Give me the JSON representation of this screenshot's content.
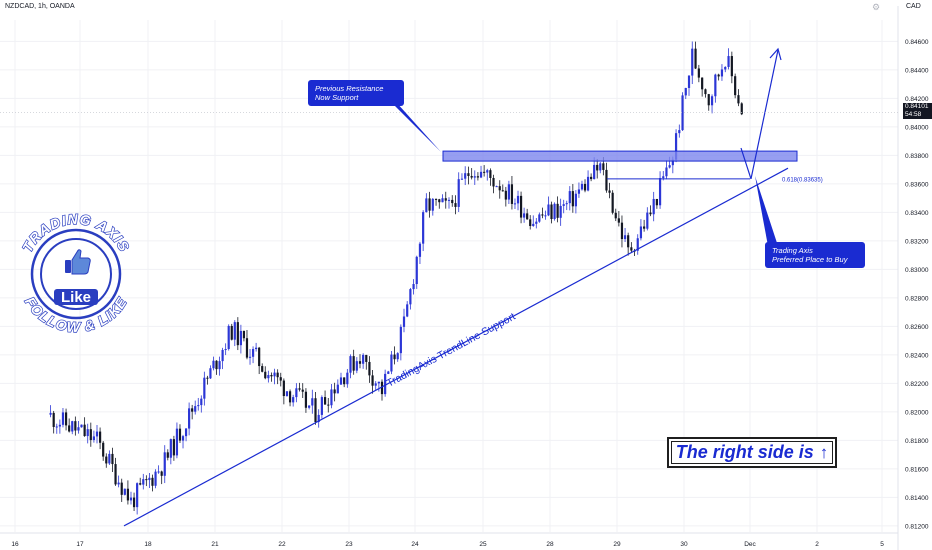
{
  "header": {
    "symbol_line": "NZDCAD, 1h, OANDA",
    "currency": "CAD",
    "gear_icon": "gear-icon"
  },
  "price_tag": {
    "price": "0.84101",
    "countdown": "54:58"
  },
  "annotations": {
    "resistance": [
      "Previous Resistance",
      "Now Support"
    ],
    "buy": [
      "Trading Axis",
      "Preferred Place to Buy"
    ],
    "trendline_label": "TradingAxis TrendLine Support",
    "fib_label": "0.618(0.83635)",
    "banner": "The right side is"
  },
  "logo": {
    "top_text": "TRADING AXIS",
    "bottom_text": "FOLLOW & LIKE",
    "badge": "Like"
  },
  "colors": {
    "bull": "#2b36d6",
    "bear": "#131722",
    "accent": "#1a2bd1",
    "zone_fill": "#7d86ee",
    "grid": "#f0f1f4"
  },
  "chart_data": {
    "type": "candlestick",
    "symbol": "NZDCAD",
    "timeframe": "1h",
    "broker": "OANDA",
    "ylim": [
      0.8115,
      0.8475
    ],
    "y_ticks": [
      "0.84600",
      "0.84400",
      "0.84200",
      "0.84000",
      "0.83800",
      "0.83600",
      "0.83400",
      "0.83200",
      "0.83000",
      "0.82800",
      "0.82600",
      "0.82400",
      "0.82200",
      "0.82000",
      "0.81800",
      "0.81600",
      "0.81400",
      "0.81200"
    ],
    "x_ticks": [
      "16",
      "17",
      "18",
      "21",
      "22",
      "23",
      "24",
      "25",
      "28",
      "29",
      "30",
      "Dec",
      "2",
      "5"
    ],
    "close_path": [
      [
        "16",
        0.8198
      ],
      [
        "17",
        0.818
      ],
      [
        "17",
        0.8137
      ],
      [
        "18",
        0.8165
      ],
      [
        "18",
        0.821
      ],
      [
        "21",
        0.8258
      ],
      [
        "21",
        0.823
      ],
      [
        "22",
        0.8212
      ],
      [
        "22",
        0.82
      ],
      [
        "22",
        0.8222
      ],
      [
        "23",
        0.824
      ],
      [
        "23",
        0.8215
      ],
      [
        "23",
        0.826
      ],
      [
        "24",
        0.8345
      ],
      [
        "24",
        0.8343
      ],
      [
        "24",
        0.8372
      ],
      [
        "25",
        0.836
      ],
      [
        "25",
        0.8335
      ],
      [
        "28",
        0.8345
      ],
      [
        "28",
        0.8372
      ],
      [
        "29",
        0.8312
      ],
      [
        "29",
        0.834
      ],
      [
        "29",
        0.838
      ],
      [
        "30",
        0.845
      ],
      [
        "30",
        0.842
      ],
      [
        "30",
        0.845
      ],
      [
        "30",
        0.8412
      ]
    ],
    "current_price": 0.84101,
    "resistance_zone": [
      0.8376,
      0.8383
    ],
    "fib_level": {
      "label": "0.618(0.83635)",
      "value": 0.83635
    },
    "trendline": {
      "from": [
        "17",
        0.812
      ],
      "to": [
        "Dec",
        0.8371
      ]
    },
    "projection": {
      "from": [
        "Dec",
        0.8363
      ],
      "to": [
        "2",
        0.8454
      ]
    }
  }
}
